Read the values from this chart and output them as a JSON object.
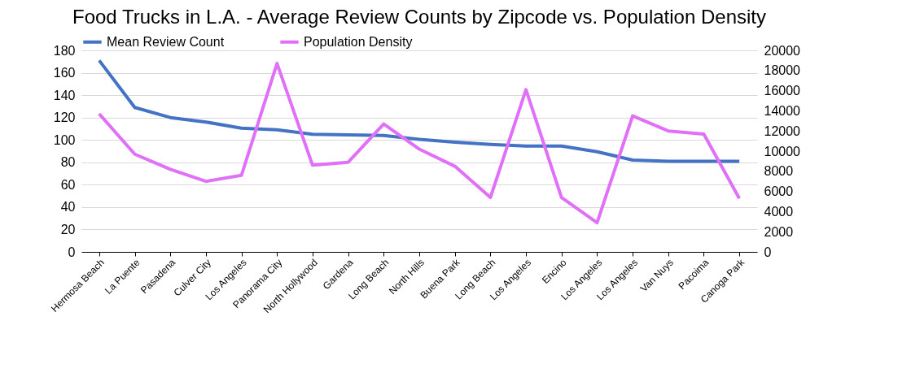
{
  "chart_data": {
    "type": "line",
    "title": "Food Trucks in L.A. - Average Review Counts by Zipcode vs. Population Density",
    "categories": [
      "Hermosa Beach",
      "La Puente",
      "Pasadena",
      "Culver City",
      "Los Angeles",
      "Panorama City",
      "North Hollywood",
      "Gardena",
      "Long Beach",
      "North Hills",
      "Buena Park",
      "Long Beach",
      "Los Angeles",
      "Encino",
      "Los Angeles",
      "Los Angeles",
      "Van Nuys",
      "Pacoima",
      "Canoga Park"
    ],
    "series": [
      {
        "name": "Mean Review Count",
        "color": "#4472c4",
        "values": [
          171,
          129,
          120,
          116,
          110.5,
          109,
          105,
          104.5,
          104,
          100.5,
          98,
          96,
          94.5,
          94.5,
          89.5,
          82,
          81,
          81,
          81
        ]
      },
      {
        "name": "Population Density",
        "color": "#e070f8",
        "axis": "y2",
        "values": [
          13700,
          9700,
          8200,
          7000,
          7600,
          18700,
          8600,
          8900,
          12700,
          10200,
          8500,
          5400,
          16100,
          5400,
          2900,
          13500,
          12000,
          11700,
          5300
        ]
      }
    ],
    "ylim": [
      0,
      180
    ],
    "yticks": [
      0,
      20,
      40,
      60,
      80,
      100,
      120,
      140,
      160,
      180
    ],
    "y2lim": [
      0,
      20000
    ],
    "y2ticks": [
      0,
      2000,
      4000,
      6000,
      8000,
      10000,
      12000,
      14000,
      16000,
      18000,
      20000
    ],
    "grid": "y",
    "legend": "top",
    "marker": "none",
    "line_style": "solid"
  }
}
